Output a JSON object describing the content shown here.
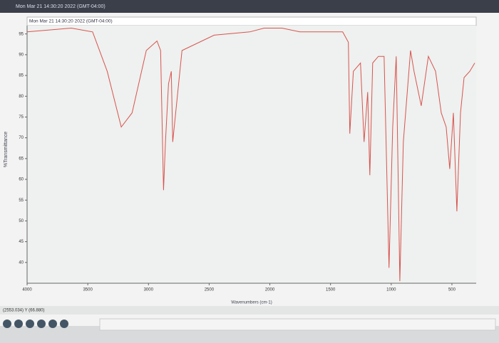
{
  "window": {
    "title": "Mon Mar 21 14:30:20 2022 (GMT-04:00)",
    "status": "(2553.034) Y (66.880)"
  },
  "chart_data": {
    "type": "line",
    "xlabel": "Wavenumbers (cm-1)",
    "ylabel": "%Transmittance",
    "xlim": [
      4000,
      300
    ],
    "ylim": [
      35,
      97
    ],
    "xticks": [
      4000,
      3500,
      3000,
      2500,
      2000,
      1500,
      1000,
      500
    ],
    "yticks": [
      40,
      45,
      50,
      55,
      60,
      65,
      70,
      75,
      80,
      85,
      90,
      95
    ],
    "x": [
      4000,
      3635,
      3460,
      3340,
      3224,
      3135,
      3018,
      2930,
      2900,
      2876,
      2860,
      2835,
      2812,
      2800,
      2724,
      2459,
      2165,
      2047,
      1900,
      1753,
      1400,
      1353,
      1341,
      1312,
      1253,
      1224,
      1194,
      1176,
      1153,
      1106,
      1059,
      1018,
      988,
      959,
      929,
      900,
      841,
      812,
      753,
      694,
      635,
      588,
      547,
      518,
      488,
      459,
      429,
      400,
      353,
      312
    ],
    "series": [
      {
        "name": "Mon Mar 21 14:30:20 2022 (GMT-04:00)",
        "color": "#d9534f",
        "values": [
          95.5,
          96.4,
          95.5,
          86,
          72.6,
          76,
          91,
          93.3,
          91,
          57.4,
          69,
          83,
          86,
          69,
          91,
          94.7,
          95.5,
          96.4,
          96.4,
          95.5,
          95.5,
          93,
          71,
          86,
          88,
          69,
          81,
          61,
          88,
          89.6,
          89.6,
          38.7,
          72.6,
          89.6,
          35.5,
          69,
          91,
          86,
          77.7,
          89.6,
          86,
          76,
          72.6,
          62.5,
          76,
          52.3,
          76,
          84.5,
          86,
          88
        ]
      }
    ]
  }
}
